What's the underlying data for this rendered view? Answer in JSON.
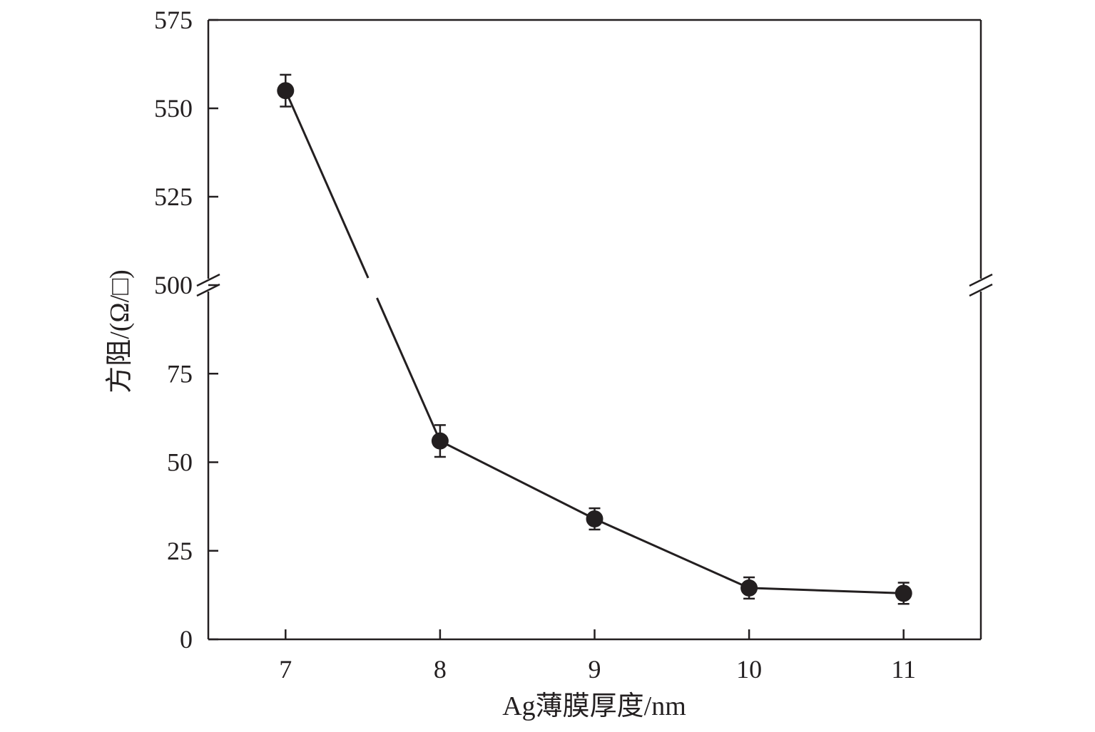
{
  "chart_data": {
    "type": "line",
    "xlabel": "Ag薄膜厚度/nm",
    "ylabel": "方阻/(Ω/□)",
    "x": [
      7,
      8,
      9,
      10,
      11
    ],
    "series": [
      {
        "values": [
          555,
          56,
          34,
          14.5,
          13
        ],
        "errors": [
          4.5,
          4.5,
          3,
          3,
          3
        ]
      }
    ],
    "xlim": [
      6.5,
      11.5
    ],
    "xticks": [
      "7",
      "8",
      "9",
      "10",
      "11"
    ],
    "ylim": [
      0,
      575
    ],
    "axis_break": {
      "lower_range": [
        0,
        100
      ],
      "upper_range": [
        500,
        575
      ]
    },
    "yticks": [
      "0",
      "25",
      "50",
      "75",
      "500",
      "525",
      "550",
      "575"
    ],
    "grid": false,
    "legend": "none",
    "marker": "filled-circle",
    "color": "#231f20"
  }
}
